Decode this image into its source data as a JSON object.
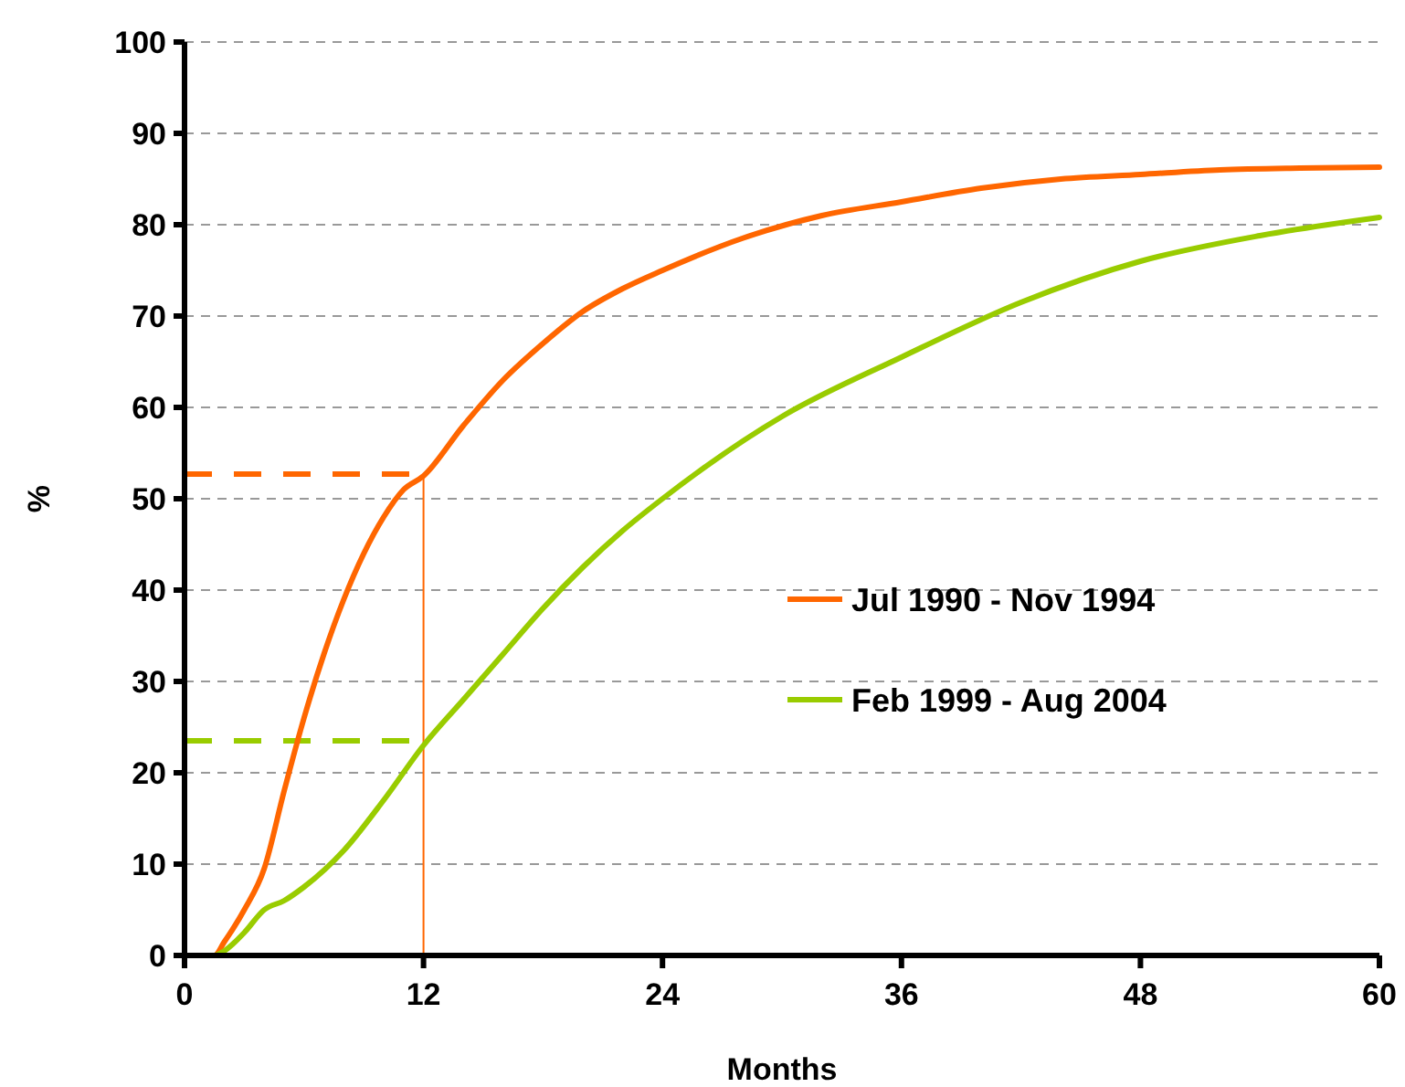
{
  "chart_data": {
    "type": "line",
    "xlabel": "Months",
    "ylabel": "%",
    "xlim": [
      0,
      60
    ],
    "xticks": [
      0,
      12,
      24,
      36,
      48,
      60
    ],
    "ylim": [
      0,
      100
    ],
    "yticks": [
      0,
      10,
      20,
      30,
      40,
      50,
      60,
      70,
      80,
      90,
      100
    ],
    "grid": "y",
    "legend": "right",
    "line_style": "solid",
    "marker": "none",
    "series": [
      {
        "name": "Jul 1990 - Nov 1994",
        "color": "#ff6600",
        "x": [
          0,
          1,
          1.5,
          2,
          3,
          4,
          5,
          6,
          7,
          8,
          9,
          10,
          11,
          12,
          14,
          16,
          18,
          20,
          22,
          24,
          28,
          32,
          36,
          40,
          44,
          48,
          52,
          56,
          60
        ],
        "values": [
          0,
          0,
          0,
          1.5,
          5,
          9.5,
          18,
          26,
          33,
          39,
          44,
          48,
          51,
          52.5,
          58,
          63,
          67,
          70.5,
          73,
          75,
          78.5,
          81,
          82.5,
          84,
          85,
          85.5,
          86,
          86.2,
          86.3
        ]
      },
      {
        "name": "Feb 1999 - Aug 2004",
        "color": "#99cc00",
        "x": [
          0,
          1,
          1.5,
          2,
          3,
          4,
          5,
          6,
          8,
          10,
          12,
          14,
          16,
          18,
          20,
          22,
          24,
          30,
          36,
          42,
          48,
          54,
          60
        ],
        "values": [
          0,
          0,
          0,
          0.5,
          2.5,
          5,
          6,
          7.5,
          11.5,
          17,
          23,
          28,
          33,
          38,
          42.5,
          46.5,
          50,
          59,
          65.5,
          71.5,
          76,
          78.8,
          80.8
        ]
      }
    ],
    "ref_lines": [
      {
        "axis": "y",
        "value": 52.7,
        "color": "#ff6600",
        "line_style": "dashed"
      },
      {
        "axis": "y",
        "value": 23.5,
        "color": "#99cc00",
        "line_style": "dashed"
      },
      {
        "axis": "x",
        "value": 12,
        "color": "#ff6600",
        "line_style": "solid"
      }
    ]
  }
}
